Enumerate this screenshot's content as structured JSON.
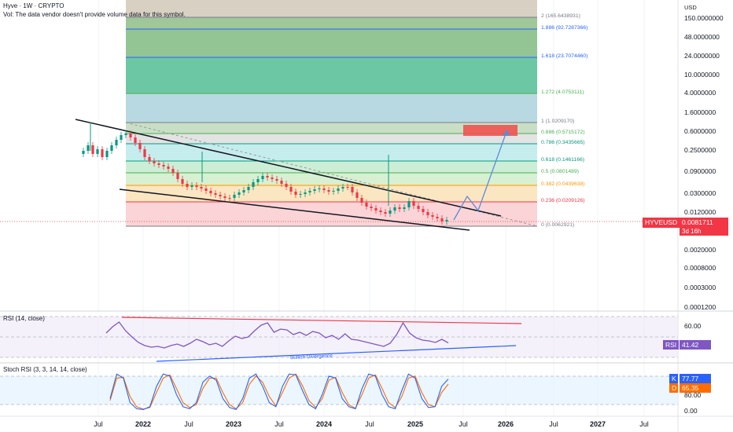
{
  "header": {
    "title": "Hyve · 1W · CRYPTO",
    "volume_note": "Vol: The data vendor doesn't provide volume data for this symbol."
  },
  "axis": {
    "unit": "USD",
    "price_ticks": [
      "150.0000000",
      "48.0000000",
      "24.0000000",
      "10.0000000",
      "4.0000000",
      "1.6000000",
      "0.6000000",
      "0.2500000",
      "0.0900000",
      "0.0300000",
      "0.0120000",
      "0.0020000",
      "0.0008000",
      "0.0003000",
      "0.0001200"
    ],
    "time_ticks": [
      {
        "label": "Jul",
        "bold": false
      },
      {
        "label": "2022",
        "bold": true
      },
      {
        "label": "Jul",
        "bold": false
      },
      {
        "label": "2023",
        "bold": true
      },
      {
        "label": "Jul",
        "bold": false
      },
      {
        "label": "2024",
        "bold": true
      },
      {
        "label": "Jul",
        "bold": false
      },
      {
        "label": "2025",
        "bold": true
      },
      {
        "label": "Jul",
        "bold": false
      },
      {
        "label": "2026",
        "bold": true
      },
      {
        "label": "Jul",
        "bold": false
      },
      {
        "label": "2027",
        "bold": true
      },
      {
        "label": "Jul",
        "bold": false
      }
    ]
  },
  "price_badge": {
    "symbol": "HYVEUSD",
    "price": "0.0081711",
    "countdown": "3d 16h",
    "color": "#f23645"
  },
  "fib_levels": [
    {
      "label": "2 (165.6438931)",
      "color": "#787b86"
    },
    {
      "label": "1.886 (92.7287366)",
      "color": "#2962ff"
    },
    {
      "label": "1.618 (23.7074460)",
      "color": "#2962ff"
    },
    {
      "label": "1.272 (4.0753111)",
      "color": "#4caf50"
    },
    {
      "label": "1 (1.0209170)",
      "color": "#787b86"
    },
    {
      "label": "0.886 (0.5715172)",
      "color": "#4caf50"
    },
    {
      "label": "0.786 (0.3435665)",
      "color": "#089981"
    },
    {
      "label": "0.618 (0.1461166)",
      "color": "#089981"
    },
    {
      "label": "0.5 (0.0801489)",
      "color": "#4caf50"
    },
    {
      "label": "0.382 (0.0439638)",
      "color": "#ff9800"
    },
    {
      "label": "0.236 (0.0209126)",
      "color": "#f23645"
    },
    {
      "label": "0 (0.0062921)",
      "color": "#787b86"
    }
  ],
  "rsi": {
    "label": "RSI (14, close)",
    "ticks": [
      "60.00"
    ],
    "badge_name": "RSI",
    "badge_value": "41.42",
    "annotation": "Bullish Divergence",
    "color": "#7e57c2"
  },
  "stoch": {
    "label": "Stoch RSI (3, 3, 14, 14, close)",
    "ticks": [
      "80.00",
      "0.00"
    ],
    "k_name": "K",
    "k_value": "77.77",
    "k_color": "#2962ff",
    "d_name": "D",
    "d_value": "65.35",
    "d_color": "#ff6d00"
  },
  "chart_data": {
    "type": "line",
    "title": "Hyve · 1W · CRYPTO",
    "y_scale": "log",
    "series": [
      {
        "name": "RSI",
        "values": [
          54,
          62,
          68,
          57,
          49,
          42,
          38,
          36,
          37,
          35,
          38,
          40,
          37,
          41,
          46,
          43,
          39,
          41,
          37,
          44,
          50,
          47,
          49,
          57,
          64,
          67,
          55,
          59,
          58,
          52,
          55,
          51,
          56,
          54,
          48,
          51,
          46,
          53,
          46,
          45,
          43,
          41,
          39,
          37,
          41,
          52,
          67,
          54,
          48,
          45,
          44,
          42,
          46,
          41.42
        ]
      },
      {
        "name": "K",
        "values": [
          30,
          90,
          80,
          20,
          5,
          3,
          10,
          60,
          90,
          85,
          40,
          10,
          5,
          20,
          70,
          85,
          75,
          30,
          8,
          3,
          30,
          80,
          90,
          60,
          20,
          10,
          60,
          90,
          88,
          50,
          15,
          5,
          40,
          85,
          80,
          30,
          10,
          5,
          55,
          90,
          85,
          40,
          10,
          5,
          50,
          90,
          80,
          30,
          8,
          10,
          60,
          77.77
        ]
      },
      {
        "name": "D",
        "values": [
          25,
          80,
          82,
          35,
          10,
          4,
          8,
          45,
          80,
          88,
          55,
          20,
          8,
          15,
          55,
          80,
          80,
          45,
          15,
          5,
          20,
          65,
          85,
          70,
          35,
          12,
          45,
          80,
          90,
          62,
          25,
          8,
          30,
          75,
          82,
          45,
          15,
          6,
          40,
          80,
          88,
          55,
          20,
          8,
          35,
          80,
          85,
          45,
          15,
          10,
          45,
          65.35
        ]
      }
    ]
  }
}
